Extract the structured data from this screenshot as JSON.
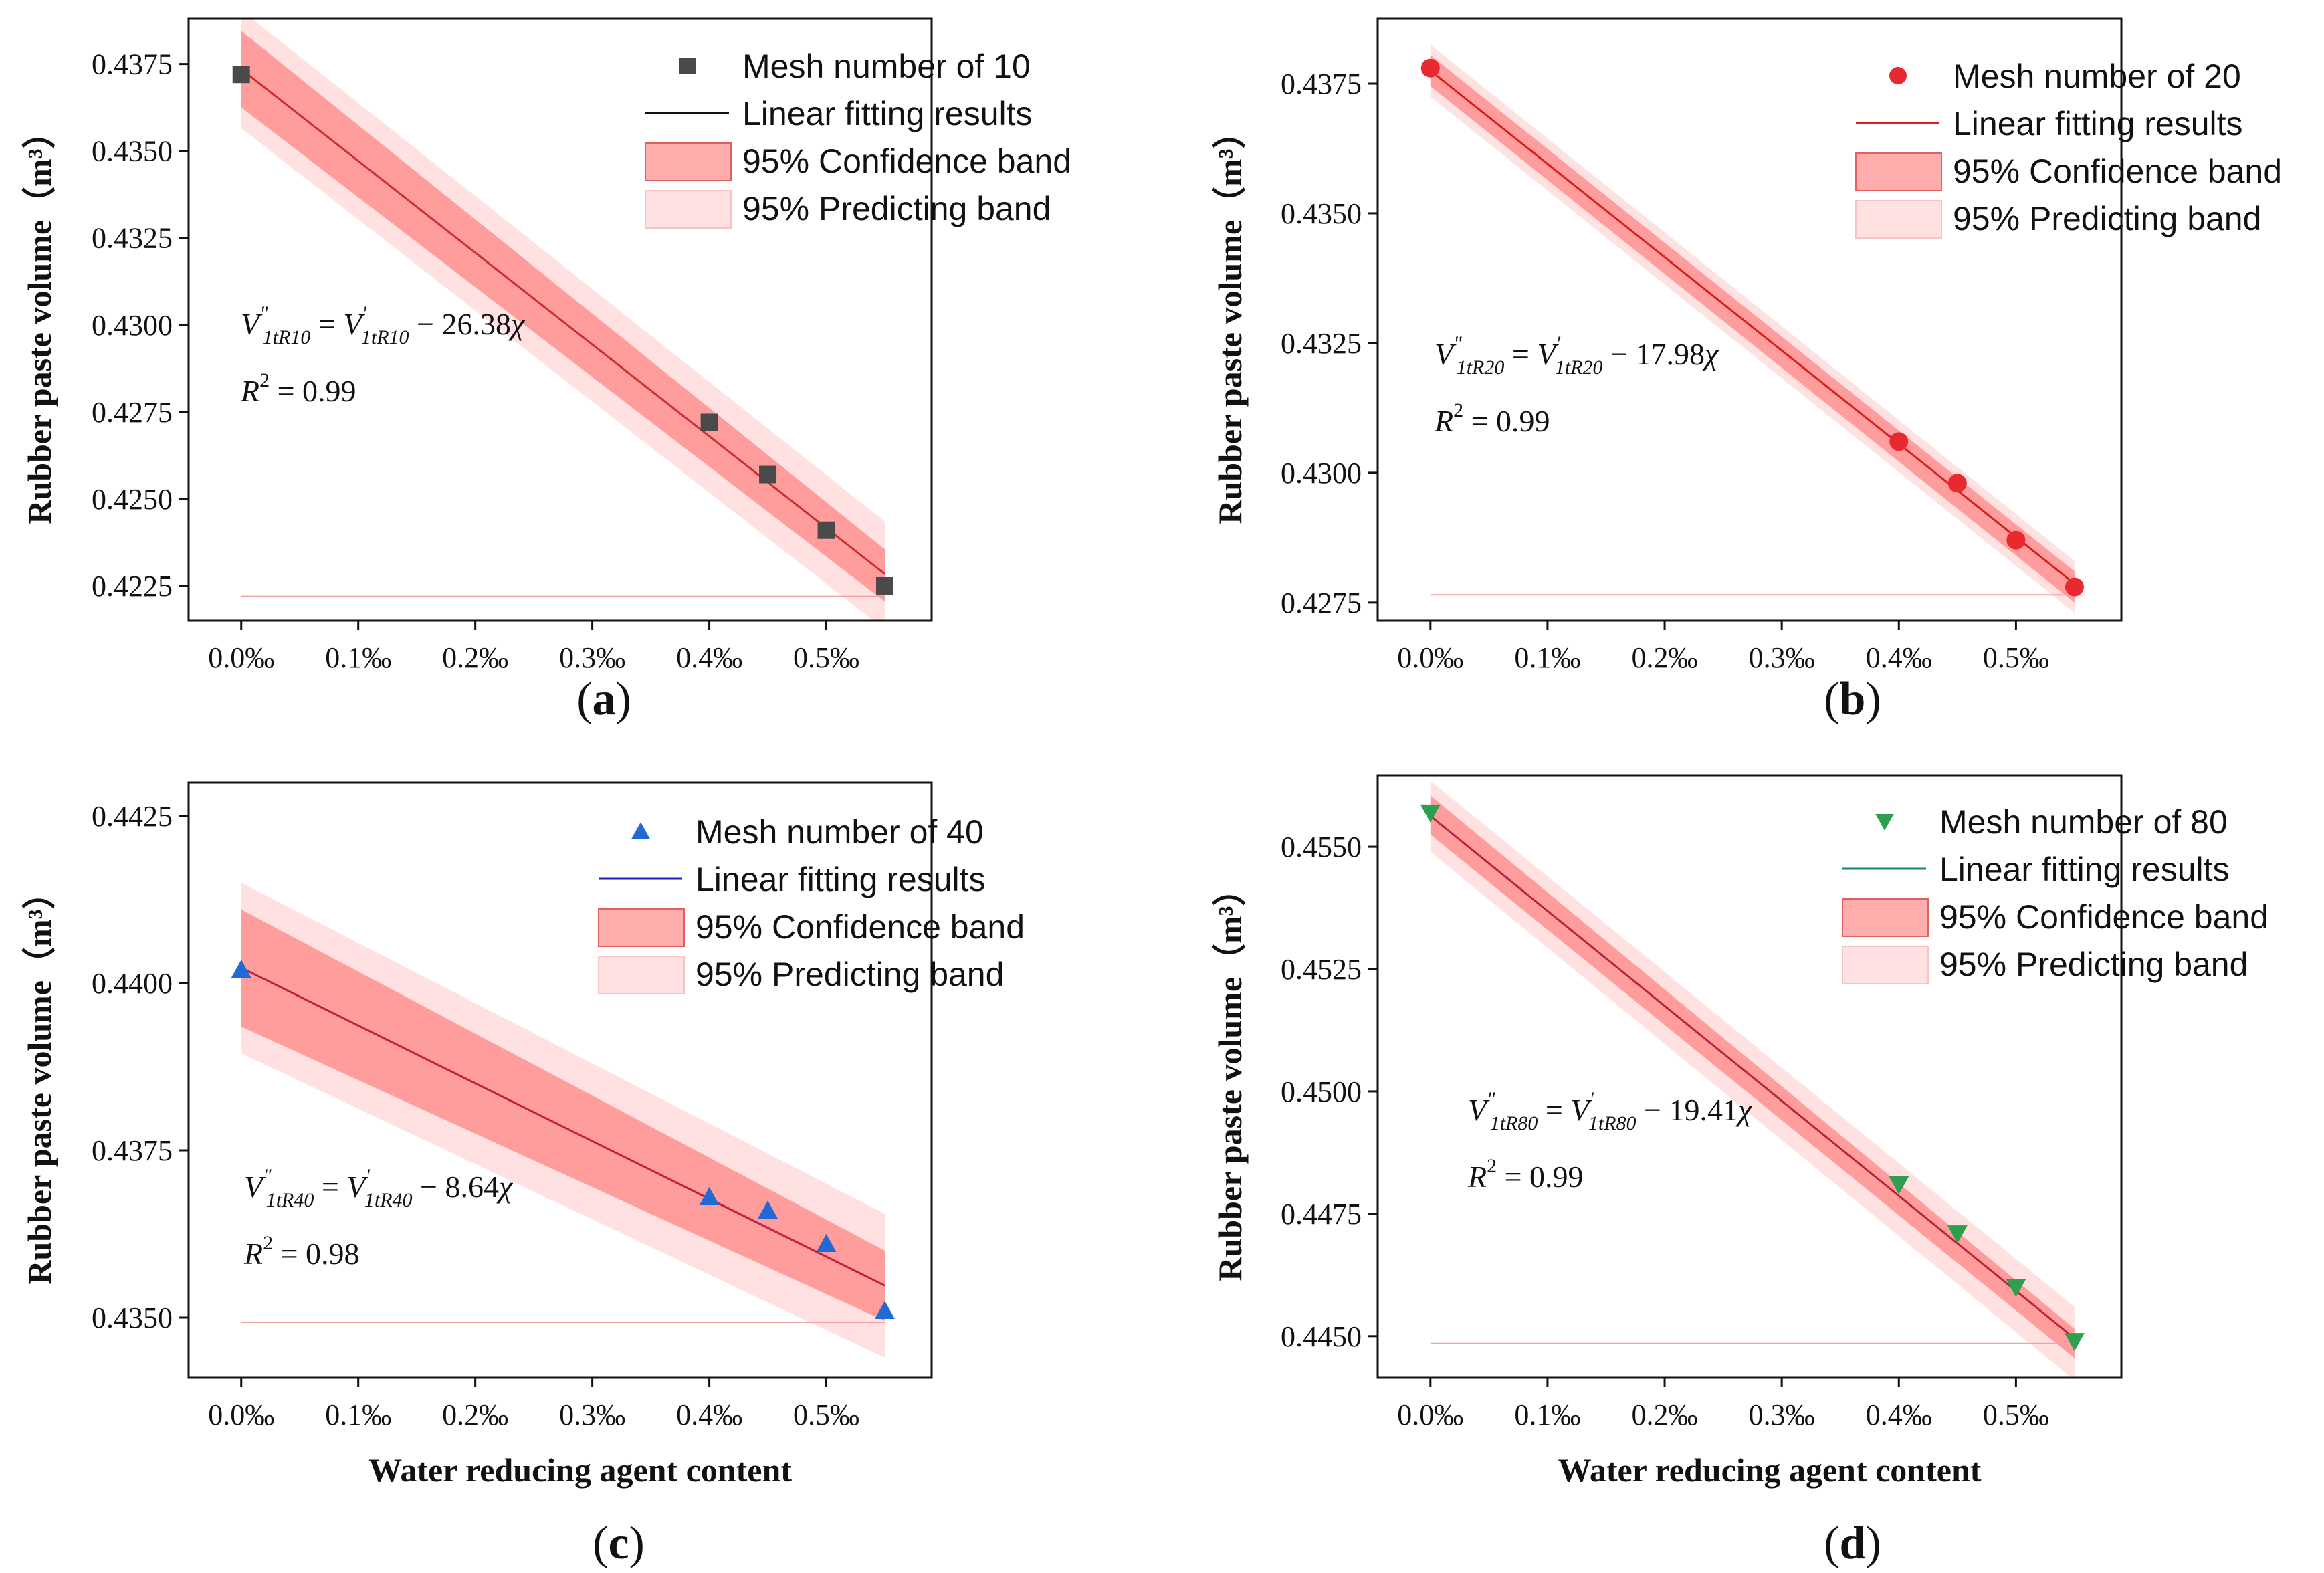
{
  "chart_data": [
    {
      "type": "scatter",
      "panel_label": "a",
      "ylabel": "Rubber paste volume（m³）",
      "xlabel": "",
      "ylim": [
        0.4215,
        0.4388
      ],
      "xlim": [
        -0.045,
        0.59
      ],
      "yticks": [
        0.4225,
        0.425,
        0.4275,
        0.43,
        0.4325,
        0.435,
        0.4375
      ],
      "ytick_labels": [
        "0.4225",
        "0.4250",
        "0.4275",
        "0.4300",
        "0.4325",
        "0.4350",
        "0.4375"
      ],
      "xticks": [
        0.0,
        0.1,
        0.2,
        0.3,
        0.4,
        0.5
      ],
      "xtick_labels": [
        "0.0‰",
        "0.1‰",
        "0.2‰",
        "0.3‰",
        "0.4‰",
        "0.5‰"
      ],
      "marker": "square",
      "marker_color": "#4a4a4a",
      "line_color": "#cc2f2f",
      "legend_line_color": "#111111",
      "band_color": "#ff5a5a",
      "x": [
        0.0,
        0.4,
        0.45,
        0.5,
        0.55
      ],
      "y": [
        0.4372,
        0.4272,
        0.4257,
        0.4241,
        0.4225
      ],
      "fit": {
        "intercept": 0.43735,
        "slope": -0.02638
      },
      "confidence_band": {
        "x": [
          0.0,
          0.55
        ],
        "upper": [
          0.43845,
          0.42355
        ],
        "lower": [
          0.43625,
          0.42205
        ]
      },
      "prediction_band": {
        "x": [
          0.0,
          0.55
        ],
        "upper": [
          0.43905,
          0.42435
        ],
        "lower": [
          0.43565,
          0.42125
        ]
      },
      "floor_line": 0.4222,
      "legend": {
        "entries": [
          "Mesh number of 10",
          "Linear fitting results",
          "95% Confidence band",
          "95% Predicting band"
        ],
        "placement": "top-right"
      },
      "equation": {
        "lhs_base": "V",
        "lhs_sup": "\"",
        "lhs_sub": "1tR10",
        "eq": " = ",
        "rhs_base": "V",
        "rhs_sup": "'",
        "rhs_sub": "1tR10",
        "minus": " − 26.38",
        "chi": "χ",
        "r2_base": "R",
        "r2_sup": "2",
        "r2_val": " = 0.99"
      },
      "caption": {
        "open": "(",
        "letter": "a",
        "close": ")"
      }
    },
    {
      "type": "scatter",
      "panel_label": "b",
      "ylabel": "Rubber paste volume（m³）",
      "xlabel": "",
      "ylim": [
        0.42715,
        0.43875
      ],
      "xlim": [
        -0.045,
        0.59
      ],
      "yticks": [
        0.4275,
        0.43,
        0.4325,
        0.435,
        0.4375
      ],
      "ytick_labels": [
        "0.4275",
        "0.4300",
        "0.4325",
        "0.4350",
        "0.4375"
      ],
      "xticks": [
        0.0,
        0.1,
        0.2,
        0.3,
        0.4,
        0.5
      ],
      "xtick_labels": [
        "0.0‰",
        "0.1‰",
        "0.2‰",
        "0.3‰",
        "0.4‰",
        "0.5‰"
      ],
      "marker": "circle",
      "marker_color": "#e8292f",
      "line_color": "#d61f1f",
      "legend_line_color": "#e02020",
      "band_color": "#ff5a5a",
      "x": [
        0.0,
        0.4,
        0.45,
        0.5,
        0.55
      ],
      "y": [
        0.4378,
        0.4306,
        0.4298,
        0.4287,
        0.4278
      ],
      "fit": {
        "intercept": 0.43775,
        "slope": -0.01798
      },
      "confidence_band": {
        "x": [
          0.0,
          0.55
        ],
        "upper": [
          0.43805,
          0.4281
        ],
        "lower": [
          0.43745,
          0.4275
        ]
      },
      "prediction_band": {
        "x": [
          0.0,
          0.55
        ],
        "upper": [
          0.43825,
          0.4283
        ],
        "lower": [
          0.43725,
          0.4273
        ]
      },
      "floor_line": 0.42765,
      "legend": {
        "entries": [
          "Mesh number of 20",
          "Linear fitting results",
          "95% Confidence band",
          "95% Predicting band"
        ],
        "placement": "top-right"
      },
      "equation": {
        "lhs_base": "V",
        "lhs_sup": "\"",
        "lhs_sub": "1tR20",
        "eq": " = ",
        "rhs_base": "V",
        "rhs_sup": "'",
        "rhs_sub": "1tR20",
        "minus": " − 17.98",
        "chi": "χ",
        "r2_base": "R",
        "r2_sup": "2",
        "r2_val": " = 0.99"
      },
      "caption": {
        "open": "(",
        "letter": "b",
        "close": ")"
      }
    },
    {
      "type": "scatter",
      "panel_label": "c",
      "ylabel": "Rubber paste volume（m³）",
      "xlabel": "Water reducing agent content",
      "ylim": [
        0.4341,
        0.443
      ],
      "xlim": [
        -0.045,
        0.59
      ],
      "yticks": [
        0.435,
        0.4375,
        0.44,
        0.4425
      ],
      "ytick_labels": [
        "0.4350",
        "0.4375",
        "0.4400",
        "0.4425"
      ],
      "xticks": [
        0.0,
        0.1,
        0.2,
        0.3,
        0.4,
        0.5
      ],
      "xtick_labels": [
        "0.0‰",
        "0.1‰",
        "0.2‰",
        "0.3‰",
        "0.4‰",
        "0.5‰"
      ],
      "marker": "triangle-up",
      "marker_color": "#2369d6",
      "line_color": "#c2203a",
      "legend_line_color": "#1f1fc8",
      "band_color": "#ff5a5a",
      "x": [
        0.0,
        0.4,
        0.45,
        0.5,
        0.55
      ],
      "y": [
        0.4402,
        0.4368,
        0.4366,
        0.4361,
        0.4351
      ],
      "fit": {
        "intercept": 0.44023,
        "slope": -0.00864
      },
      "confidence_band": {
        "x": [
          0.0,
          0.55
        ],
        "upper": [
          0.4411,
          0.436
        ],
        "lower": [
          0.43935,
          0.43495
        ]
      },
      "prediction_band": {
        "x": [
          0.0,
          0.55
        ],
        "upper": [
          0.4415,
          0.43655
        ],
        "lower": [
          0.43895,
          0.4344
        ]
      },
      "floor_line": 0.43493,
      "legend": {
        "entries": [
          "Mesh number of 40",
          "Linear fitting results",
          "95% Confidence band",
          "95% Predicting band"
        ],
        "placement": "top-right"
      },
      "equation": {
        "lhs_base": "V",
        "lhs_sup": "\"",
        "lhs_sub": "1tR40",
        "eq": " = ",
        "rhs_base": "V",
        "rhs_sup": "'",
        "rhs_sub": "1tR40",
        "minus": " − 8.64",
        "chi": "χ",
        "r2_base": "R",
        "r2_sup": "2",
        "r2_val": " = 0.98"
      },
      "caption": {
        "open": "(",
        "letter": "c",
        "close": ")"
      }
    },
    {
      "type": "scatter",
      "panel_label": "d",
      "ylabel": "Rubber paste volume（m³）",
      "xlabel": "Water reducing agent content",
      "ylim": [
        0.44415,
        0.45645
      ],
      "xlim": [
        -0.045,
        0.59
      ],
      "yticks": [
        0.445,
        0.4475,
        0.45,
        0.4525,
        0.455
      ],
      "ytick_labels": [
        "0.4450",
        "0.4475",
        "0.4500",
        "0.4525",
        "0.4550"
      ],
      "xticks": [
        0.0,
        0.1,
        0.2,
        0.3,
        0.4,
        0.5
      ],
      "xtick_labels": [
        "0.0‰",
        "0.1‰",
        "0.2‰",
        "0.3‰",
        "0.4‰",
        "0.5‰"
      ],
      "marker": "triangle-down",
      "marker_color": "#2e9e4f",
      "line_color": "#b8233a",
      "legend_line_color": "#1a8a5a",
      "band_color": "#ff5a5a",
      "x": [
        0.0,
        0.4,
        0.45,
        0.5,
        0.55
      ],
      "y": [
        0.4557,
        0.4481,
        0.4471,
        0.446,
        0.4449
      ],
      "fit": {
        "intercept": 0.45563,
        "slope": -0.01941
      },
      "confidence_band": {
        "x": [
          0.0,
          0.55
        ],
        "upper": [
          0.45605,
          0.44515
        ],
        "lower": [
          0.45525,
          0.44455
        ]
      },
      "prediction_band": {
        "x": [
          0.0,
          0.55
        ],
        "upper": [
          0.45635,
          0.4456
        ],
        "lower": [
          0.4549,
          0.4441
        ]
      },
      "floor_line": 0.44485,
      "legend": {
        "entries": [
          "Mesh number of 80",
          "Linear fitting results",
          "95% Confidence band",
          "95% Predicting band"
        ],
        "placement": "top-right"
      },
      "equation": {
        "lhs_base": "V",
        "lhs_sup": "\"",
        "lhs_sub": "1tR80",
        "eq": " = ",
        "rhs_base": "V",
        "rhs_sup": "'",
        "rhs_sub": "1tR80",
        "minus": " − 19.41",
        "chi": "χ",
        "r2_base": "R",
        "r2_sup": "2",
        "r2_val": " = 0.99"
      },
      "caption": {
        "open": "(",
        "letter": "d",
        "close": ")"
      }
    }
  ]
}
